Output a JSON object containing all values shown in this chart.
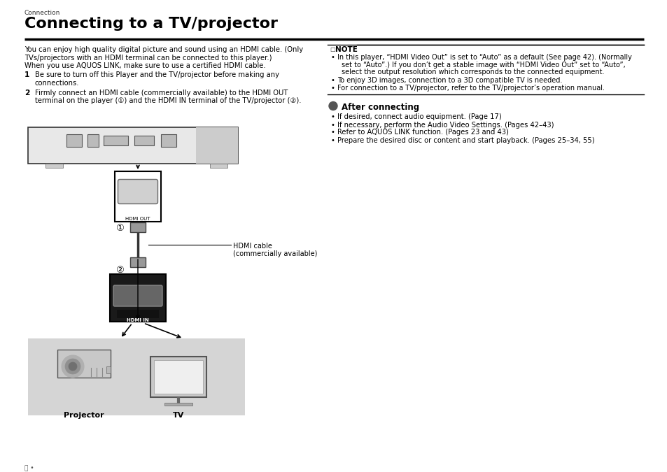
{
  "bg_color": "#ffffff",
  "section_label": "Connection",
  "title": "Connecting to a TV/projector",
  "intro_line1": "You can enjoy high quality digital picture and sound using an HDMI cable. (Only",
  "intro_line2": "TVs/projectors with an HDMI terminal can be connected to this player.)",
  "intro_line3": "When you use AQUOS LINK, make sure to use a certified HDMI cable.",
  "step1_text_l1": "Be sure to turn off this Player and the TV/projector before making any",
  "step1_text_l2": "connections.",
  "step2_text_l1": "Firmly connect an HDMI cable (commercially available) to the HDMI OUT",
  "step2_text_l2": "terminal on the player (①) and the HDMI IN terminal of the TV/projector (②).",
  "note_line1": "In this player, “HDMI Video Out” is set to “Auto” as a default (See page 42). (Normally",
  "note_line2": "set to “Auto”.) If you don’t get a stable image with “HDMI Video Out” set to “Auto”,",
  "note_line3": "select the output resolution which corresponds to the connected equipment.",
  "note_line4": "To enjoy 3D images, connection to a 3D compatible TV is needed.",
  "note_line5": "For connection to a TV/projector, refer to the TV/projector’s operation manual.",
  "after_title": "After connecting",
  "after_b1": "If desired, connect audio equipment. (Page 17)",
  "after_b2": "If necessary, perform the Audio Video Settings. (Pages 42–43)",
  "after_b3": "Refer to AQUOS LINK function. (Pages 23 and 43)",
  "after_b4": "Prepare the desired disc or content and start playback. (Pages 25–34, 55)",
  "hdmi_cable_l1": "HDMI cable",
  "hdmi_cable_l2": "(commercially available)",
  "projector_label": "Projector",
  "tv_label": "TV",
  "hdmi_out_label": "HDMI OUT",
  "hdmi_in_label": "HDMI IN",
  "circle1": "①",
  "circle2": "②",
  "footer": "ⓔ •"
}
